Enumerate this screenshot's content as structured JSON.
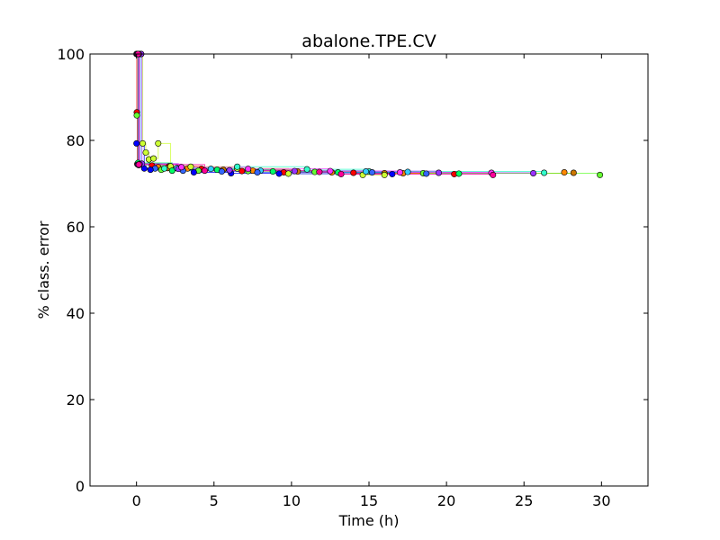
{
  "chart_data": {
    "type": "scatter",
    "title": "abalone.TPE.CV",
    "xlabel": "Time (h)",
    "ylabel": "% class. error",
    "xlim": [
      -3,
      33
    ],
    "ylim": [
      0,
      100
    ],
    "xticks": [
      0,
      5,
      10,
      15,
      20,
      25,
      30
    ],
    "yticks": [
      0,
      20,
      40,
      60,
      80,
      100
    ],
    "grid": false,
    "legend": "none",
    "series": [
      {
        "color": "#ff0000",
        "stairs": true,
        "points": [
          [
            0.0,
            100.0
          ],
          [
            0.02,
            86.5
          ],
          [
            0.05,
            74.5
          ],
          [
            1.0,
            74.2
          ],
          [
            2.1,
            74.0
          ],
          [
            4.2,
            73.4
          ],
          [
            6.8,
            72.9
          ],
          [
            9.5,
            72.6
          ],
          [
            14.0,
            72.5
          ],
          [
            20.5,
            72.2
          ]
        ]
      },
      {
        "color": "#ff8800",
        "stairs": true,
        "points": [
          [
            0.05,
            100.0
          ],
          [
            0.1,
            74.6
          ],
          [
            1.4,
            73.8
          ],
          [
            3.3,
            73.5
          ],
          [
            7.5,
            73.0
          ],
          [
            12.6,
            72.6
          ],
          [
            17.2,
            72.4
          ],
          [
            27.6,
            72.6
          ]
        ]
      },
      {
        "color": "#cc7700",
        "stairs": true,
        "points": [
          [
            0.1,
            100.0
          ],
          [
            0.15,
            74.3
          ],
          [
            2.0,
            73.6
          ],
          [
            5.6,
            73.2
          ],
          [
            10.4,
            72.8
          ],
          [
            16.0,
            72.4
          ],
          [
            28.2,
            72.5
          ]
        ]
      },
      {
        "color": "#ccff33",
        "stairs": true,
        "points": [
          [
            0.3,
            100.0
          ],
          [
            0.4,
            79.3
          ],
          [
            0.6,
            77.2
          ],
          [
            0.8,
            75.6
          ],
          [
            1.1,
            75.8
          ],
          [
            1.4,
            79.3
          ],
          [
            2.2,
            74.0
          ],
          [
            3.5,
            73.9
          ],
          [
            6.5,
            73.5
          ],
          [
            9.8,
            72.3
          ],
          [
            14.6,
            72.0
          ],
          [
            16.0,
            72.0
          ]
        ]
      },
      {
        "color": "#66ff33",
        "stairs": true,
        "points": [
          [
            0.02,
            85.8
          ],
          [
            0.1,
            74.6
          ],
          [
            1.6,
            73.2
          ],
          [
            4.0,
            73.0
          ],
          [
            7.2,
            72.9
          ],
          [
            11.5,
            72.7
          ],
          [
            18.5,
            72.4
          ],
          [
            29.9,
            72.0
          ]
        ]
      },
      {
        "color": "#00ff66",
        "stairs": true,
        "points": [
          [
            0.05,
            100.0
          ],
          [
            0.1,
            74.8
          ],
          [
            2.3,
            73.0
          ],
          [
            5.2,
            73.2
          ],
          [
            8.8,
            72.8
          ],
          [
            13.0,
            72.6
          ],
          [
            20.8,
            72.3
          ]
        ]
      },
      {
        "color": "#33ffcc",
        "stairs": true,
        "points": [
          [
            0.1,
            100.0
          ],
          [
            0.15,
            74.3
          ],
          [
            1.8,
            73.5
          ],
          [
            6.5,
            73.9
          ],
          [
            11.0,
            73.3
          ],
          [
            15.0,
            72.8
          ],
          [
            26.3,
            72.5
          ]
        ]
      },
      {
        "color": "#33ccff",
        "stairs": true,
        "points": [
          [
            0.2,
            100.0
          ],
          [
            0.25,
            74.5
          ],
          [
            2.6,
            73.6
          ],
          [
            4.8,
            73.4
          ],
          [
            8.0,
            73.0
          ],
          [
            14.8,
            72.8
          ],
          [
            17.5,
            72.7
          ]
        ]
      },
      {
        "color": "#3366ff",
        "stairs": true,
        "points": [
          [
            0.05,
            100.0
          ],
          [
            0.1,
            74.4
          ],
          [
            1.2,
            73.5
          ],
          [
            3.0,
            73.0
          ],
          [
            5.5,
            72.8
          ],
          [
            7.8,
            72.6
          ],
          [
            15.2,
            72.6
          ],
          [
            18.7,
            72.3
          ]
        ]
      },
      {
        "color": "#0000ff",
        "stairs": true,
        "points": [
          [
            0.0,
            79.3
          ],
          [
            0.5,
            73.5
          ],
          [
            0.9,
            73.2
          ],
          [
            3.7,
            72.6
          ],
          [
            6.1,
            72.4
          ],
          [
            9.2,
            72.3
          ],
          [
            16.5,
            72.2
          ]
        ]
      },
      {
        "color": "#9933ff",
        "stairs": true,
        "points": [
          [
            0.3,
            100.0
          ],
          [
            0.35,
            74.6
          ],
          [
            2.7,
            73.4
          ],
          [
            6.0,
            73.1
          ],
          [
            10.2,
            72.9
          ],
          [
            19.5,
            72.5
          ],
          [
            25.6,
            72.4
          ]
        ]
      },
      {
        "color": "#ff33ff",
        "stairs": true,
        "points": [
          [
            0.15,
            100.0
          ],
          [
            0.2,
            74.5
          ],
          [
            2.9,
            73.8
          ],
          [
            7.2,
            73.4
          ],
          [
            12.5,
            72.9
          ],
          [
            17.0,
            72.6
          ],
          [
            22.9,
            72.5
          ]
        ]
      },
      {
        "color": "#ff0099",
        "stairs": true,
        "points": [
          [
            0.1,
            100.0
          ],
          [
            0.15,
            74.4
          ],
          [
            4.4,
            73.0
          ],
          [
            11.8,
            72.7
          ],
          [
            13.2,
            72.2
          ],
          [
            23.0,
            72.0
          ]
        ]
      }
    ]
  }
}
